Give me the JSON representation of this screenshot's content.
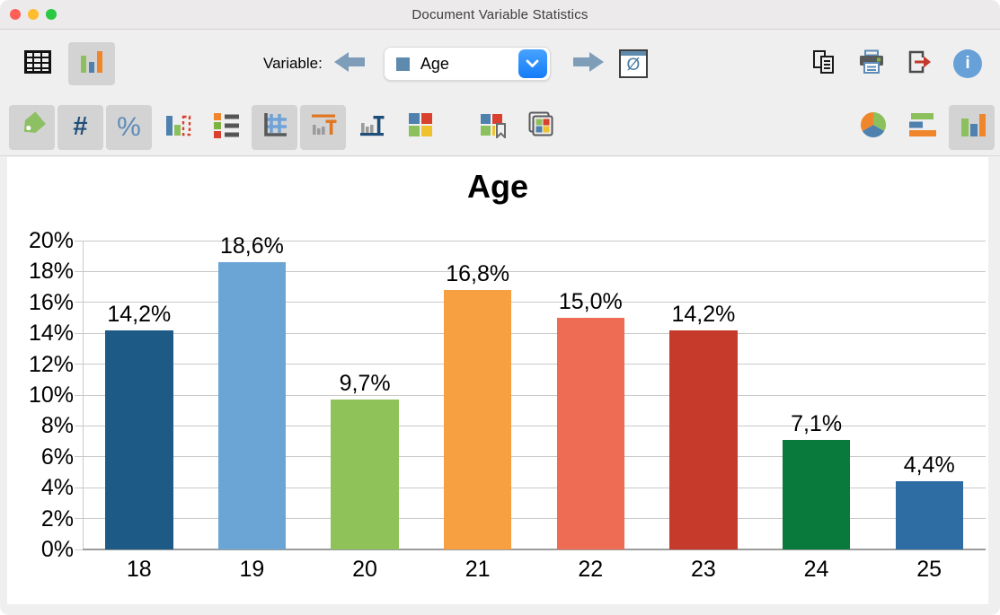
{
  "window": {
    "title": "Document Variable Statistics"
  },
  "toolbar_top": {
    "variable_label": "Variable:",
    "variable_value": "Age",
    "mean_glyph": "Ø",
    "info_glyph": "i",
    "left_icons": [
      "table-view",
      "chart-view"
    ],
    "right_icons": [
      "copy",
      "print",
      "export",
      "info"
    ]
  },
  "toolbar_icons": {
    "hash_glyph": "#",
    "percent_glyph": "%",
    "left_icons": [
      "tag-labels",
      "hash-count",
      "percent",
      "missing-values",
      "legend",
      "grid",
      "value-labels",
      "axis-labels",
      "colors",
      "color-bookmark",
      "color-palette"
    ],
    "right_icons": [
      "pie-chart",
      "horizontal-bar-chart",
      "vertical-bar-chart"
    ],
    "pressed": [
      "tag-labels",
      "hash-count",
      "percent",
      "grid",
      "value-labels",
      "vertical-bar-chart"
    ]
  },
  "chart_data": {
    "type": "bar",
    "title": "Age",
    "categories": [
      "18",
      "19",
      "20",
      "21",
      "22",
      "23",
      "24",
      "25"
    ],
    "values": [
      14.2,
      18.6,
      9.7,
      16.8,
      15.0,
      14.2,
      7.1,
      4.4
    ],
    "value_labels": [
      "14,2%",
      "18,6%",
      "9,7%",
      "16,8%",
      "15,0%",
      "14,2%",
      "7,1%",
      "4,4%"
    ],
    "bar_colors": [
      "#1D5A85",
      "#6BA5D5",
      "#8FC35A",
      "#F6A041",
      "#EF6C54",
      "#C53A2B",
      "#0A7A3C",
      "#2E6DA4"
    ],
    "xlabel": "",
    "ylabel": "",
    "ylim": [
      0,
      20
    ],
    "ytick_step": 2,
    "ytick_suffix": "%",
    "grid": true,
    "legend": false
  }
}
